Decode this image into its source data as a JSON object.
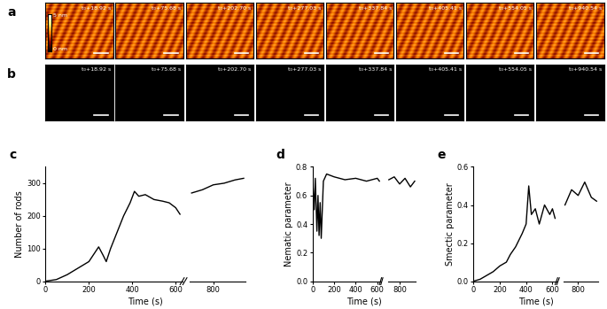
{
  "image_rows": [
    {
      "label": "a",
      "times": [
        "t₀+18.92 s",
        "t₀+75.68 s",
        "t₀+202.70 s",
        "t₀+277.03 s",
        "t₀+337.84 s",
        "t₀+405.41 s",
        "t₀+554.05 s",
        "t₀+940.54 s"
      ],
      "colorbar_labels": [
        "5 nm",
        "0 nm"
      ]
    },
    {
      "label": "b",
      "times": [
        "t₀+18.92 s",
        "t₀+75.68 s",
        "t₀+202.70 s",
        "t₀+277.03 s",
        "t₀+337.84 s",
        "t₀+405.41 s",
        "t₀+554.05 s",
        "t₀+940.54 s"
      ]
    }
  ],
  "chart_data": [
    {
      "label": "c",
      "type": "line",
      "xlabel": "Time (s)",
      "ylabel": "Number of rods",
      "color": "#000000",
      "ylim": [
        0,
        350
      ],
      "yticks": [
        0,
        100,
        200,
        300
      ],
      "segments": [
        {
          "xlim": [
            0,
            630
          ],
          "xticks": [
            0,
            200,
            400,
            600
          ],
          "x": [
            0,
            50,
            100,
            150,
            200,
            230,
            245,
            265,
            280,
            300,
            330,
            360,
            390,
            410,
            430,
            460,
            500,
            540,
            570,
            600,
            620
          ],
          "values": [
            0,
            5,
            20,
            40,
            60,
            90,
            105,
            80,
            60,
            100,
            150,
            200,
            240,
            275,
            260,
            265,
            250,
            245,
            240,
            225,
            205
          ]
        },
        {
          "xlim": [
            690,
            950
          ],
          "xticks": [
            800
          ],
          "x": [
            700,
            750,
            800,
            850,
            900,
            940
          ],
          "values": [
            270,
            280,
            295,
            300,
            310,
            315
          ]
        }
      ]
    },
    {
      "label": "d",
      "type": "line",
      "xlabel": "Time (s)",
      "ylabel": "Nematic parameter",
      "color": "#000000",
      "ylim": [
        0,
        0.8
      ],
      "yticks": [
        {
          "value": 0,
          "label": "0.0"
        },
        0.2,
        0.4,
        0.6,
        0.8
      ],
      "segments": [
        {
          "xlim": [
            0,
            630
          ],
          "xticks": [
            0,
            200,
            400,
            600
          ],
          "x": [
            5,
            15,
            25,
            40,
            50,
            60,
            70,
            80,
            100,
            130,
            200,
            300,
            400,
            500,
            600,
            620
          ],
          "values": [
            0.65,
            0.5,
            0.72,
            0.35,
            0.6,
            0.32,
            0.55,
            0.3,
            0.7,
            0.75,
            0.73,
            0.71,
            0.72,
            0.7,
            0.72,
            0.7
          ]
        },
        {
          "xlim": [
            690,
            950
          ],
          "xticks": [
            800
          ],
          "x": [
            700,
            750,
            800,
            850,
            900,
            940
          ],
          "values": [
            0.71,
            0.73,
            0.68,
            0.72,
            0.66,
            0.7
          ]
        }
      ]
    },
    {
      "label": "e",
      "type": "line",
      "xlabel": "Time (s)",
      "ylabel": "Smectic parameter",
      "color": "#000000",
      "ylim": [
        0,
        0.6
      ],
      "yticks": [
        {
          "value": 0,
          "label": "0.0"
        },
        0.2,
        0.4,
        0.6
      ],
      "segments": [
        {
          "xlim": [
            0,
            630
          ],
          "xticks": [
            0,
            200,
            400,
            600
          ],
          "x": [
            0,
            50,
            100,
            150,
            200,
            250,
            280,
            320,
            370,
            400,
            420,
            440,
            470,
            500,
            540,
            580,
            600,
            620
          ],
          "values": [
            0,
            0.01,
            0.03,
            0.05,
            0.08,
            0.1,
            0.14,
            0.18,
            0.25,
            0.3,
            0.5,
            0.35,
            0.38,
            0.3,
            0.4,
            0.35,
            0.38,
            0.33
          ]
        },
        {
          "xlim": [
            690,
            950
          ],
          "xticks": [
            800
          ],
          "x": [
            700,
            750,
            800,
            850,
            900,
            940
          ],
          "values": [
            0.4,
            0.48,
            0.45,
            0.52,
            0.44,
            0.42
          ]
        }
      ]
    }
  ]
}
